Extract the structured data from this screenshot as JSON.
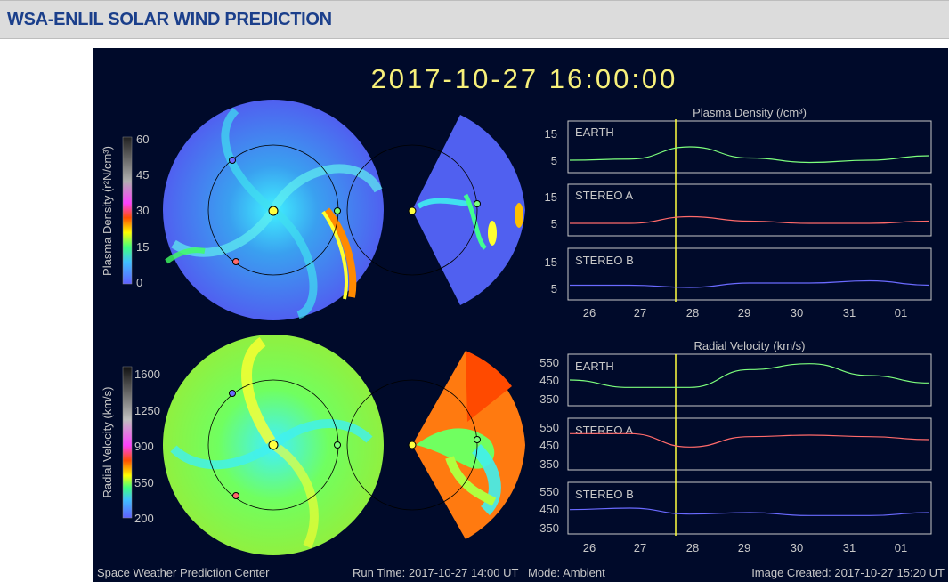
{
  "page_title": "WSA-ENLIL SOLAR WIND PREDICTION",
  "timestamp": "2017-10-27  16:00:00",
  "colors": {
    "background": "#000a2a",
    "title_bar": "#dcdcdc",
    "title_text": "#1b3f8b",
    "timestamp": "#f7f07a",
    "earth": "#7dff7d",
    "stereo_a": "#ff6a6a",
    "stereo_b": "#6a6aff",
    "marker_line": "#ffff40"
  },
  "density": {
    "colorbar_label": "Plasma Density (r²N/cm³)",
    "colorbar_ticks": [
      "60",
      "45",
      "30",
      "15",
      "0"
    ],
    "panel_title": "Plasma Density (/cm³)",
    "tracks": [
      {
        "name": "EARTH",
        "ticks": [
          "15",
          "5"
        ]
      },
      {
        "name": "STEREO A",
        "ticks": [
          "15",
          "5"
        ]
      },
      {
        "name": "STEREO B",
        "ticks": [
          "15",
          "5"
        ]
      }
    ]
  },
  "velocity": {
    "colorbar_label": "Radial Velocity (km/s)",
    "colorbar_ticks": [
      "1600",
      "1250",
      "900",
      "550",
      "200"
    ],
    "panel_title": "Radial Velocity (km/s)",
    "tracks": [
      {
        "name": "EARTH",
        "ticks": [
          "550",
          "450",
          "350"
        ]
      },
      {
        "name": "STEREO A",
        "ticks": [
          "550",
          "450",
          "350"
        ]
      },
      {
        "name": "STEREO B",
        "ticks": [
          "550",
          "450",
          "350"
        ]
      }
    ]
  },
  "x_ticks": [
    "26",
    "27",
    "28",
    "29",
    "30",
    "31",
    "01"
  ],
  "footer": {
    "left": "Space Weather Prediction Center",
    "middle": "Run Time: 2017-10-27 14:00 UT   Mode: Ambient",
    "right": "Image Created: 2017-10-27 15:20 UT"
  },
  "chart_data": [
    {
      "type": "line",
      "title": "Plasma Density (/cm³)",
      "x": [
        "26",
        "27",
        "28",
        "29",
        "30",
        "31",
        "01"
      ],
      "current_time_x": 27.67,
      "series": [
        {
          "name": "EARTH",
          "values": [
            4,
            4.5,
            10,
            5,
            3,
            4,
            6
          ]
        },
        {
          "name": "STEREO A",
          "values": [
            4,
            4,
            7,
            5,
            4,
            4,
            5
          ]
        },
        {
          "name": "STEREO B",
          "values": [
            5,
            5,
            4,
            6,
            6,
            7,
            5
          ]
        }
      ]
    },
    {
      "type": "line",
      "title": "Radial Velocity (km/s)",
      "x": [
        "26",
        "27",
        "28",
        "29",
        "30",
        "31",
        "01"
      ],
      "current_time_x": 27.67,
      "series": [
        {
          "name": "EARTH",
          "values": [
            450,
            400,
            400,
            520,
            560,
            480,
            430
          ]
        },
        {
          "name": "STEREO A",
          "values": [
            520,
            520,
            430,
            500,
            510,
            500,
            480
          ]
        },
        {
          "name": "STEREO B",
          "values": [
            440,
            450,
            410,
            420,
            400,
            400,
            420
          ]
        }
      ]
    }
  ]
}
